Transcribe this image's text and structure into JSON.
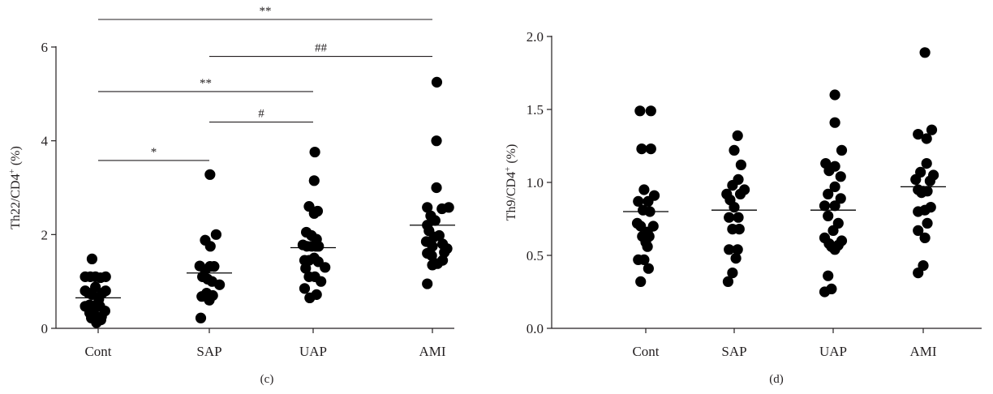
{
  "chart_data": [
    {
      "type": "scatter",
      "panel_label": "(c)",
      "ylabel": "Th22/CD4",
      "ylabel_sup": "+",
      "ylabel_unit": "(%)",
      "ylim": [
        0,
        6
      ],
      "yticks": [
        0,
        2,
        4,
        6
      ],
      "ytick_labels": [
        "0",
        "2",
        "4",
        "6"
      ],
      "categories": [
        "Cont",
        "SAP",
        "UAP",
        "AMI"
      ],
      "grid": false,
      "groups": [
        {
          "name": "Cont",
          "mean": 0.65,
          "points": [
            {
              "x": -0.18,
              "y": 1.48
            },
            {
              "x": -0.38,
              "y": 1.1
            },
            {
              "x": -0.23,
              "y": 1.1
            },
            {
              "x": -0.08,
              "y": 1.1
            },
            {
              "x": 0.07,
              "y": 1.08
            },
            {
              "x": 0.22,
              "y": 1.1
            },
            {
              "x": -0.38,
              "y": 0.8
            },
            {
              "x": -0.28,
              "y": 0.75
            },
            {
              "x": -0.18,
              "y": 0.72
            },
            {
              "x": -0.08,
              "y": 0.88
            },
            {
              "x": 0.02,
              "y": 0.62
            },
            {
              "x": 0.12,
              "y": 0.75
            },
            {
              "x": 0.22,
              "y": 0.8
            },
            {
              "x": -0.38,
              "y": 0.47
            },
            {
              "x": -0.25,
              "y": 0.5
            },
            {
              "x": -0.12,
              "y": 0.48
            },
            {
              "x": 0.05,
              "y": 0.47
            },
            {
              "x": 0.2,
              "y": 0.37
            },
            {
              "x": -0.25,
              "y": 0.33
            },
            {
              "x": -0.1,
              "y": 0.28
            },
            {
              "x": 0.1,
              "y": 0.25
            },
            {
              "x": -0.2,
              "y": 0.22
            },
            {
              "x": -0.05,
              "y": 0.12
            },
            {
              "x": 0.08,
              "y": 0.18
            }
          ]
        },
        {
          "name": "SAP",
          "mean": 1.18,
          "points": [
            {
              "x": 0.02,
              "y": 3.28
            },
            {
              "x": -0.12,
              "y": 1.88
            },
            {
              "x": 0.2,
              "y": 2.0
            },
            {
              "x": 0.03,
              "y": 1.75
            },
            {
              "x": -0.28,
              "y": 1.33
            },
            {
              "x": -0.12,
              "y": 1.25
            },
            {
              "x": 0.02,
              "y": 1.32
            },
            {
              "x": 0.14,
              "y": 1.32
            },
            {
              "x": -0.2,
              "y": 1.1
            },
            {
              "x": -0.05,
              "y": 1.05
            },
            {
              "x": 0.08,
              "y": 1.0
            },
            {
              "x": 0.3,
              "y": 0.93
            },
            {
              "x": -0.08,
              "y": 0.75
            },
            {
              "x": 0.1,
              "y": 0.7
            },
            {
              "x": 0.0,
              "y": 0.6
            },
            {
              "x": -0.22,
              "y": 0.68
            },
            {
              "x": -0.25,
              "y": 0.22
            }
          ]
        },
        {
          "name": "UAP",
          "mean": 1.72,
          "points": [
            {
              "x": 0.05,
              "y": 3.76
            },
            {
              "x": 0.03,
              "y": 3.15
            },
            {
              "x": -0.12,
              "y": 2.6
            },
            {
              "x": 0.13,
              "y": 2.5
            },
            {
              "x": 0.03,
              "y": 2.45
            },
            {
              "x": -0.2,
              "y": 2.05
            },
            {
              "x": -0.05,
              "y": 1.98
            },
            {
              "x": 0.1,
              "y": 1.9
            },
            {
              "x": -0.3,
              "y": 1.78
            },
            {
              "x": -0.18,
              "y": 1.75
            },
            {
              "x": -0.05,
              "y": 1.75
            },
            {
              "x": 0.08,
              "y": 1.75
            },
            {
              "x": 0.16,
              "y": 1.75
            },
            {
              "x": -0.25,
              "y": 1.45
            },
            {
              "x": -0.12,
              "y": 1.45
            },
            {
              "x": 0.03,
              "y": 1.5
            },
            {
              "x": 0.15,
              "y": 1.42
            },
            {
              "x": 0.35,
              "y": 1.3
            },
            {
              "x": -0.22,
              "y": 1.28
            },
            {
              "x": -0.12,
              "y": 1.1
            },
            {
              "x": 0.05,
              "y": 1.1
            },
            {
              "x": 0.23,
              "y": 1.0
            },
            {
              "x": -0.25,
              "y": 0.85
            },
            {
              "x": -0.1,
              "y": 0.65
            },
            {
              "x": 0.1,
              "y": 0.72
            }
          ]
        },
        {
          "name": "AMI",
          "mean": 2.2,
          "points": [
            {
              "x": 0.13,
              "y": 5.25
            },
            {
              "x": 0.12,
              "y": 4.0
            },
            {
              "x": 0.12,
              "y": 3.0
            },
            {
              "x": -0.15,
              "y": 2.58
            },
            {
              "x": 0.28,
              "y": 2.55
            },
            {
              "x": 0.48,
              "y": 2.58
            },
            {
              "x": -0.05,
              "y": 2.4
            },
            {
              "x": 0.08,
              "y": 2.3
            },
            {
              "x": -0.15,
              "y": 2.2
            },
            {
              "x": -0.1,
              "y": 2.08
            },
            {
              "x": 0.05,
              "y": 1.95
            },
            {
              "x": 0.2,
              "y": 1.98
            },
            {
              "x": -0.18,
              "y": 1.85
            },
            {
              "x": 0.0,
              "y": 1.75
            },
            {
              "x": 0.3,
              "y": 1.8
            },
            {
              "x": -0.15,
              "y": 1.6
            },
            {
              "x": 0.43,
              "y": 1.7
            },
            {
              "x": -0.02,
              "y": 1.55
            },
            {
              "x": 0.35,
              "y": 1.62
            },
            {
              "x": 0.0,
              "y": 1.35
            },
            {
              "x": 0.15,
              "y": 1.38
            },
            {
              "x": 0.3,
              "y": 1.45
            },
            {
              "x": -0.15,
              "y": 0.95
            }
          ]
        }
      ],
      "significance": [
        {
          "from": 0,
          "to": 1,
          "label": "*",
          "y": 3.58
        },
        {
          "from": 1,
          "to": 2,
          "label": "#",
          "y": 4.4
        },
        {
          "from": 0,
          "to": 2,
          "label": "**",
          "y": 5.05
        },
        {
          "from": 1,
          "to": 3,
          "label": "##",
          "y": 5.8
        },
        {
          "from": 0,
          "to": 3,
          "label": "**",
          "y": 6.75
        }
      ]
    },
    {
      "type": "scatter",
      "panel_label": "(d)",
      "ylabel": "Th9/CD4",
      "ylabel_sup": "+",
      "ylabel_unit": "(%)",
      "ylim": [
        0,
        2
      ],
      "yticks": [
        0,
        0.5,
        1.0,
        1.5,
        2.0
      ],
      "ytick_labels": [
        "0.0",
        "0.5",
        "1.0",
        "1.5",
        "2.0"
      ],
      "categories": [
        "Cont",
        "SAP",
        "UAP",
        "AMI"
      ],
      "grid": false,
      "groups": [
        {
          "name": "Cont",
          "mean": 0.8,
          "points": [
            {
              "x": -0.17,
              "y": 1.49
            },
            {
              "x": 0.15,
              "y": 1.49
            },
            {
              "x": -0.12,
              "y": 1.23
            },
            {
              "x": 0.15,
              "y": 1.23
            },
            {
              "x": -0.05,
              "y": 0.95
            },
            {
              "x": 0.25,
              "y": 0.91
            },
            {
              "x": -0.22,
              "y": 0.87
            },
            {
              "x": 0.07,
              "y": 0.87
            },
            {
              "x": -0.08,
              "y": 0.81
            },
            {
              "x": 0.12,
              "y": 0.8
            },
            {
              "x": -0.25,
              "y": 0.72
            },
            {
              "x": -0.15,
              "y": 0.7
            },
            {
              "x": 0.22,
              "y": 0.7
            },
            {
              "x": 0.05,
              "y": 0.66
            },
            {
              "x": -0.1,
              "y": 0.63
            },
            {
              "x": 0.1,
              "y": 0.63
            },
            {
              "x": 0.0,
              "y": 0.59
            },
            {
              "x": 0.05,
              "y": 0.56
            },
            {
              "x": -0.22,
              "y": 0.47
            },
            {
              "x": -0.05,
              "y": 0.47
            },
            {
              "x": 0.08,
              "y": 0.41
            },
            {
              "x": -0.15,
              "y": 0.32
            }
          ]
        },
        {
          "name": "SAP",
          "mean": 0.81,
          "points": [
            {
              "x": 0.1,
              "y": 1.32
            },
            {
              "x": 0.0,
              "y": 1.22
            },
            {
              "x": 0.2,
              "y": 1.12
            },
            {
              "x": 0.12,
              "y": 1.02
            },
            {
              "x": -0.05,
              "y": 0.98
            },
            {
              "x": 0.3,
              "y": 0.95
            },
            {
              "x": 0.18,
              "y": 0.92
            },
            {
              "x": -0.22,
              "y": 0.92
            },
            {
              "x": -0.12,
              "y": 0.88
            },
            {
              "x": 0.0,
              "y": 0.83
            },
            {
              "x": -0.15,
              "y": 0.76
            },
            {
              "x": 0.12,
              "y": 0.76
            },
            {
              "x": -0.05,
              "y": 0.68
            },
            {
              "x": 0.15,
              "y": 0.68
            },
            {
              "x": -0.15,
              "y": 0.54
            },
            {
              "x": 0.1,
              "y": 0.54
            },
            {
              "x": 0.05,
              "y": 0.48
            },
            {
              "x": -0.05,
              "y": 0.38
            },
            {
              "x": -0.18,
              "y": 0.32
            }
          ]
        },
        {
          "name": "UAP",
          "mean": 0.81,
          "points": [
            {
              "x": 0.05,
              "y": 1.6
            },
            {
              "x": 0.05,
              "y": 1.41
            },
            {
              "x": 0.25,
              "y": 1.22
            },
            {
              "x": -0.22,
              "y": 1.13
            },
            {
              "x": 0.05,
              "y": 1.11
            },
            {
              "x": -0.12,
              "y": 1.08
            },
            {
              "x": 0.22,
              "y": 1.04
            },
            {
              "x": 0.05,
              "y": 0.97
            },
            {
              "x": -0.15,
              "y": 0.92
            },
            {
              "x": 0.22,
              "y": 0.89
            },
            {
              "x": -0.25,
              "y": 0.84
            },
            {
              "x": 0.05,
              "y": 0.84
            },
            {
              "x": -0.15,
              "y": 0.77
            },
            {
              "x": 0.15,
              "y": 0.72
            },
            {
              "x": 0.0,
              "y": 0.67
            },
            {
              "x": -0.25,
              "y": 0.62
            },
            {
              "x": -0.12,
              "y": 0.58
            },
            {
              "x": -0.05,
              "y": 0.56
            },
            {
              "x": 0.05,
              "y": 0.54
            },
            {
              "x": 0.15,
              "y": 0.57
            },
            {
              "x": 0.25,
              "y": 0.6
            },
            {
              "x": -0.15,
              "y": 0.36
            },
            {
              "x": -0.05,
              "y": 0.27
            },
            {
              "x": -0.25,
              "y": 0.25
            }
          ]
        },
        {
          "name": "AMI",
          "mean": 0.97,
          "points": [
            {
              "x": 0.05,
              "y": 1.89
            },
            {
              "x": 0.25,
              "y": 1.36
            },
            {
              "x": -0.15,
              "y": 1.33
            },
            {
              "x": 0.1,
              "y": 1.3
            },
            {
              "x": 0.1,
              "y": 1.13
            },
            {
              "x": -0.08,
              "y": 1.07
            },
            {
              "x": 0.3,
              "y": 1.05
            },
            {
              "x": -0.22,
              "y": 1.02
            },
            {
              "x": 0.2,
              "y": 1.01
            },
            {
              "x": -0.15,
              "y": 0.95
            },
            {
              "x": 0.0,
              "y": 0.94
            },
            {
              "x": 0.12,
              "y": 0.94
            },
            {
              "x": -0.05,
              "y": 0.93
            },
            {
              "x": 0.05,
              "y": 0.81
            },
            {
              "x": -0.15,
              "y": 0.8
            },
            {
              "x": 0.22,
              "y": 0.83
            },
            {
              "x": 0.12,
              "y": 0.72
            },
            {
              "x": -0.15,
              "y": 0.67
            },
            {
              "x": 0.05,
              "y": 0.62
            },
            {
              "x": 0.0,
              "y": 0.43
            },
            {
              "x": -0.15,
              "y": 0.38
            }
          ]
        }
      ],
      "significance": []
    }
  ]
}
